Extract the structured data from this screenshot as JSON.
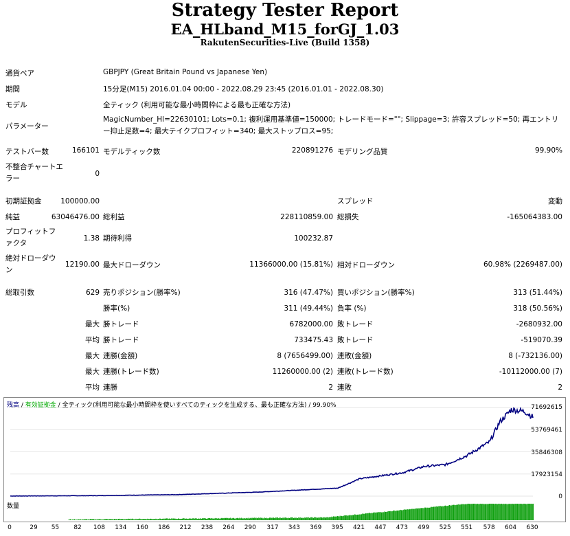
{
  "header": {
    "title": "Strategy Tester Report",
    "ea_name": "EA_HLband_M15_forGJ_1.03",
    "server": "RakutenSecurities-Live (Build 1358)"
  },
  "info": {
    "pair_label": "通貨ペア",
    "pair_value": "GBPJPY (Great Britain Pound vs Japanese Yen)",
    "period_label": "期間",
    "period_value": "15分足(M15) 2016.01.04 00:00 - 2022.08.29 23:45 (2016.01.01 - 2022.08.30)",
    "model_label": "モデル",
    "model_value": "全ティック (利用可能な最小時間枠による最も正確な方法)",
    "params_label": "パラメーター",
    "params_value": "MagicNumber_Hl=22630101; Lots=0.1; 複利運用基準値=150000; トレードモード=\"\"; Slippage=3; 許容スプレッド=50; 再エントリー抑止足数=4; 最大テイクプロフィット=340; 最大ストップロス=95;"
  },
  "stats": {
    "bars_label": "テストバー数",
    "bars_value": "166101",
    "ticks_label": "モデルティック数",
    "ticks_value": "220891276",
    "quality_label": "モデリング品質",
    "quality_value": "99.90%",
    "mismatch_label": "不整合チャートエラー",
    "mismatch_value": "0",
    "deposit_label": "初期証拠金",
    "deposit_value": "100000.00",
    "spread_label": "スプレッド",
    "spread_value": "変動",
    "net_label": "純益",
    "net_value": "63046476.00",
    "gross_profit_label": "総利益",
    "gross_profit_value": "228110859.00",
    "gross_loss_label": "総損失",
    "gross_loss_value": "-165064383.00",
    "pf_label": "プロフィットファクタ",
    "pf_value": "1.38",
    "expected_label": "期待利得",
    "expected_value": "100232.87",
    "abs_dd_label": "絶対ドローダウン",
    "abs_dd_value": "12190.00",
    "max_dd_label": "最大ドローダウン",
    "max_dd_value": "11366000.00 (15.81%)",
    "rel_dd_label": "相対ドローダウン",
    "rel_dd_value": "60.98% (2269487.00)",
    "total_label": "総取引数",
    "total_value": "629",
    "short_label": "売りポジション(勝率%)",
    "short_value": "316 (47.47%)",
    "long_label": "買いポジション(勝率%)",
    "long_value": "313 (51.44%)",
    "winrate_label": "勝率(%)",
    "winrate_value": "311 (49.44%)",
    "lossrate_label": "負率 (%)",
    "lossrate_value": "318 (50.56%)",
    "max_label": "最大",
    "avg_label": "平均",
    "win_trade_label": "勝トレード",
    "max_win_value": "6782000.00",
    "loss_trade_label": "敗トレード",
    "max_loss_value": "-2680932.00",
    "avg_win_value": "733475.43",
    "avg_loss_value": "-519070.39",
    "consec_win_amt_label": "連勝(金額)",
    "consec_win_amt_value": "8 (7656499.00)",
    "consec_loss_amt_label": "連敗(金額)",
    "consec_loss_amt_value": "8 (-732136.00)",
    "consec_win_trd_label": "連勝(トレード数)",
    "consec_win_trd_value": "11260000.00 (2)",
    "consec_loss_trd_label": "連敗(トレード数)",
    "consec_loss_trd_value": "-10112000.00 (7)",
    "avg_consec_win_label": "連勝",
    "avg_consec_win_value": "2",
    "avg_consec_loss_label": "連敗",
    "avg_consec_loss_value": "2"
  },
  "chart_legend": {
    "balance": "残高",
    "sep1": " / ",
    "equity": "有効証拠金",
    "sep2": " / ",
    "model": "全ティック(利用可能な最小時間枠を使いすべてのティックを生成する、最も正確な方法)",
    "sep3": " / ",
    "quality": "99.90%",
    "volume": "数量"
  },
  "colors": {
    "balance": "#000080",
    "equity": "#00aa00",
    "volume": "#10a010"
  },
  "chart_data": {
    "type": "line",
    "title": "",
    "series": [
      {
        "name": "残高",
        "x": [
          0,
          100,
          200,
          300,
          395,
          421,
          447,
          473,
          499,
          525,
          551,
          578,
          590,
          604,
          620,
          630
        ],
        "y": [
          100000,
          400000,
          1200000,
          3300000,
          6500000,
          14000000,
          16500000,
          19000000,
          24000000,
          25500000,
          33000000,
          44000000,
          60000000,
          70000000,
          68500000,
          64000000
        ]
      }
    ],
    "y_ticks": [
      "71692615",
      "53769461",
      "35846308",
      "17923154",
      "0"
    ],
    "y_tick_values": [
      71692615,
      53769461,
      35846308,
      17923154,
      0
    ],
    "x_ticks": [
      "0",
      "29",
      "55",
      "82",
      "108",
      "134",
      "160",
      "186",
      "212",
      "238",
      "264",
      "290",
      "317",
      "343",
      "369",
      "395",
      "421",
      "447",
      "473",
      "499",
      "525",
      "551",
      "578",
      "604",
      "630"
    ],
    "xlim": [
      0,
      630
    ],
    "ylim": [
      0,
      71692615
    ],
    "volume_start_trade": 70,
    "volume_ramp_trade": 380
  }
}
